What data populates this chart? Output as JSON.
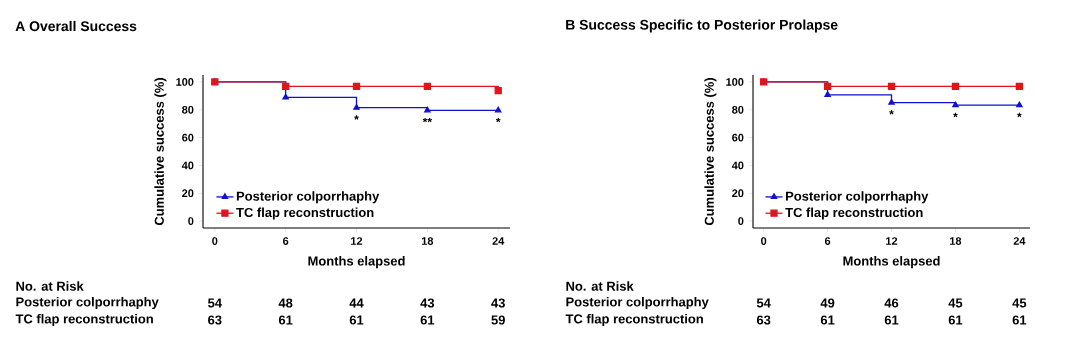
{
  "chart_data": [
    {
      "type": "step",
      "title": "A Overall Success",
      "xlabel": "Months elapsed",
      "ylabel": "Cumulative success (%)",
      "x": [
        0,
        6,
        12,
        18,
        24
      ],
      "xlim": [
        -1,
        25
      ],
      "ylim": [
        -5,
        105
      ],
      "xticks": [
        0,
        6,
        12,
        18,
        24
      ],
      "yticks": [
        0,
        20,
        40,
        60,
        80,
        100
      ],
      "legend": "bottom left",
      "grid": false,
      "series": [
        {
          "name": "Posterior colporrhaphy",
          "color": "#1010d0",
          "marker": "triangle",
          "values": [
            100,
            88.9,
            81.5,
            79.6,
            79.6
          ]
        },
        {
          "name": "TC flap reconstruction",
          "color": "#e0141e",
          "marker": "square",
          "values": [
            100,
            96.8,
            96.8,
            96.8,
            93.7
          ]
        }
      ],
      "annotations": [
        {
          "text": "*",
          "x": 12,
          "y": 81.5
        },
        {
          "text": "**",
          "x": 18,
          "y": 79.6
        },
        {
          "text": "*",
          "x": 24,
          "y": 79.6
        },
        "No. at Risk",
        "Posterior colporrhaphy",
        "54",
        "48",
        "44",
        "43",
        "43",
        "TC flap reconstruction",
        "63",
        "61",
        "61",
        "61",
        "59"
      ]
    },
    {
      "type": "step",
      "title": "B Success Specific to Posterior Prolapse",
      "xlabel": "Months elapsed",
      "ylabel": "Cumulative success (%)",
      "x": [
        0,
        6,
        12,
        18,
        24
      ],
      "xlim": [
        -1,
        25
      ],
      "ylim": [
        -5,
        105
      ],
      "xticks": [
        0,
        6,
        12,
        18,
        24
      ],
      "yticks": [
        0,
        20,
        40,
        60,
        80,
        100
      ],
      "legend": "bottom left",
      "grid": false,
      "series": [
        {
          "name": "Posterior colporrhaphy",
          "color": "#1010d0",
          "marker": "triangle",
          "values": [
            100,
            90.7,
            85.2,
            83.3,
            83.3
          ]
        },
        {
          "name": "TC flap reconstruction",
          "color": "#e0141e",
          "marker": "square",
          "values": [
            100,
            96.8,
            96.8,
            96.8,
            96.8
          ]
        }
      ],
      "annotations": [
        {
          "text": "*",
          "x": 12,
          "y": 85.2
        },
        {
          "text": "*",
          "x": 18,
          "y": 83.3
        },
        {
          "text": "*",
          "x": 24,
          "y": 83.3
        },
        "No. at Risk",
        "Posterior colporrhaphy",
        "54",
        "49",
        "46",
        "45",
        "45",
        "TC flap reconstruction",
        "63",
        "61",
        "61",
        "61",
        "61"
      ]
    }
  ]
}
